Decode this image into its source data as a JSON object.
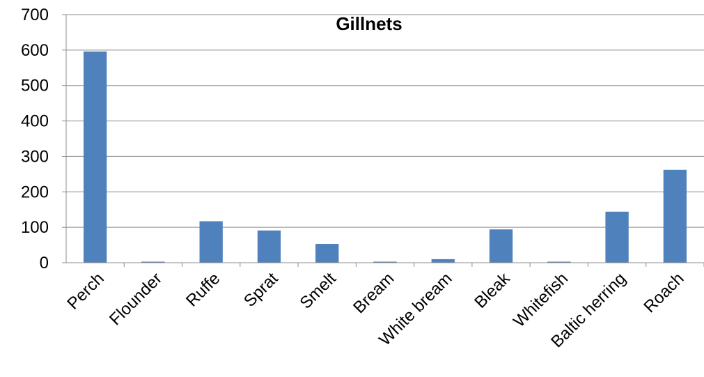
{
  "chart_data": {
    "type": "bar",
    "title": "Gillnets",
    "xlabel": "",
    "ylabel": "",
    "categories": [
      "Perch",
      "Flounder",
      "Ruffe",
      "Sprat",
      "Smelt",
      "Bream",
      "White bream",
      "Bleak",
      "Whitefish",
      "Baltic herring",
      "Roach"
    ],
    "values": [
      596,
      2,
      117,
      91,
      53,
      2,
      10,
      94,
      2,
      144,
      262
    ],
    "ylim": [
      0,
      700
    ],
    "yticks": [
      0,
      100,
      200,
      300,
      400,
      500,
      600,
      700
    ],
    "grid": true,
    "legend": "none",
    "colors": {
      "bar": "#4F81BD",
      "grid": "#8C8C8C",
      "axis": "#8C8C8C"
    }
  }
}
